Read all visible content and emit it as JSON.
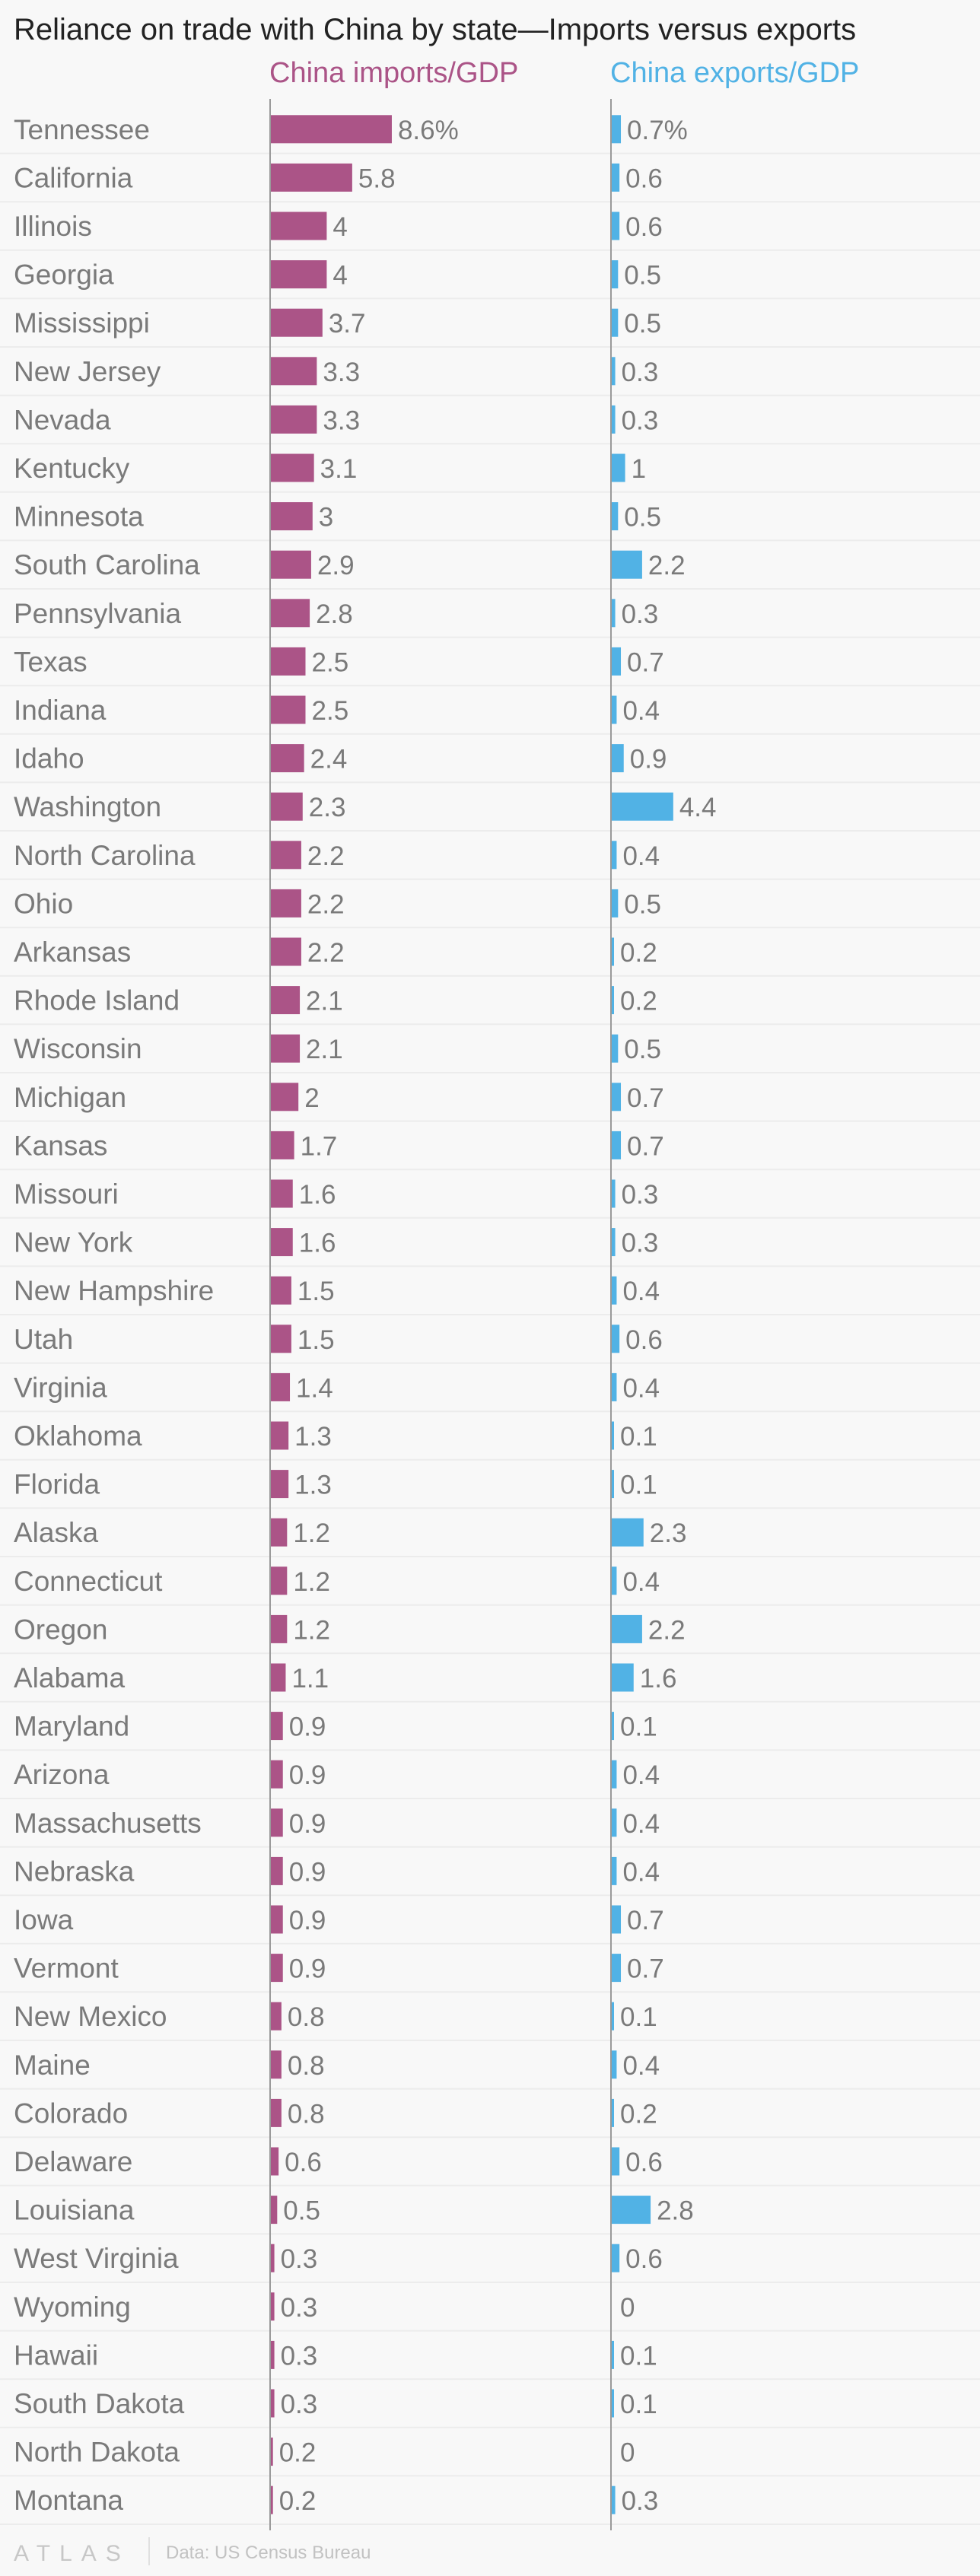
{
  "chart_data": {
    "type": "bar",
    "title": "Reliance on trade with China by state—Imports versus exports",
    "value_unit": "%",
    "series": [
      {
        "name": "China imports/GDP",
        "color": "#ab5487",
        "values": [
          8.6,
          5.8,
          4,
          4,
          3.7,
          3.3,
          3.3,
          3.1,
          3,
          2.9,
          2.8,
          2.5,
          2.5,
          2.4,
          2.3,
          2.2,
          2.2,
          2.2,
          2.1,
          2.1,
          2,
          1.7,
          1.6,
          1.6,
          1.5,
          1.5,
          1.4,
          1.3,
          1.3,
          1.2,
          1.2,
          1.2,
          1.1,
          0.9,
          0.9,
          0.9,
          0.9,
          0.9,
          0.9,
          0.8,
          0.8,
          0.8,
          0.6,
          0.5,
          0.3,
          0.3,
          0.3,
          0.3,
          0.2,
          0.2
        ]
      },
      {
        "name": "China exports/GDP",
        "color": "#51b2e5",
        "values": [
          0.7,
          0.6,
          0.6,
          0.5,
          0.5,
          0.3,
          0.3,
          1,
          0.5,
          2.2,
          0.3,
          0.7,
          0.4,
          0.9,
          4.4,
          0.4,
          0.5,
          0.2,
          0.2,
          0.5,
          0.7,
          0.7,
          0.3,
          0.3,
          0.4,
          0.6,
          0.4,
          0.1,
          0.1,
          2.3,
          0.4,
          2.2,
          1.6,
          0.1,
          0.4,
          0.4,
          0.4,
          0.7,
          0.7,
          0.1,
          0.4,
          0.2,
          0.6,
          2.8,
          0.6,
          0,
          0.1,
          0.1,
          0,
          0.3
        ]
      }
    ],
    "categories": [
      "Tennessee",
      "California",
      "Illinois",
      "Georgia",
      "Mississippi",
      "New Jersey",
      "Nevada",
      "Kentucky",
      "Minnesota",
      "South Carolina",
      "Pennsylvania",
      "Texas",
      "Indiana",
      "Idaho",
      "Washington",
      "North Carolina",
      "Ohio",
      "Arkansas",
      "Rhode Island",
      "Wisconsin",
      "Michigan",
      "Kansas",
      "Missouri",
      "New York",
      "New Hampshire",
      "Utah",
      "Virginia",
      "Oklahoma",
      "Florida",
      "Alaska",
      "Connecticut",
      "Oregon",
      "Alabama",
      "Maryland",
      "Arizona",
      "Massachusetts",
      "Nebraska",
      "Iowa",
      "Vermont",
      "New Mexico",
      "Maine",
      "Colorado",
      "Delaware",
      "Louisiana",
      "West Virginia",
      "Wyoming",
      "Hawaii",
      "South Dakota",
      "North Dakota",
      "Montana"
    ],
    "grid": true,
    "legend": "column headers above bars"
  },
  "footer": {
    "brand": "ATLAS",
    "source": "Data: US Census Bureau"
  }
}
